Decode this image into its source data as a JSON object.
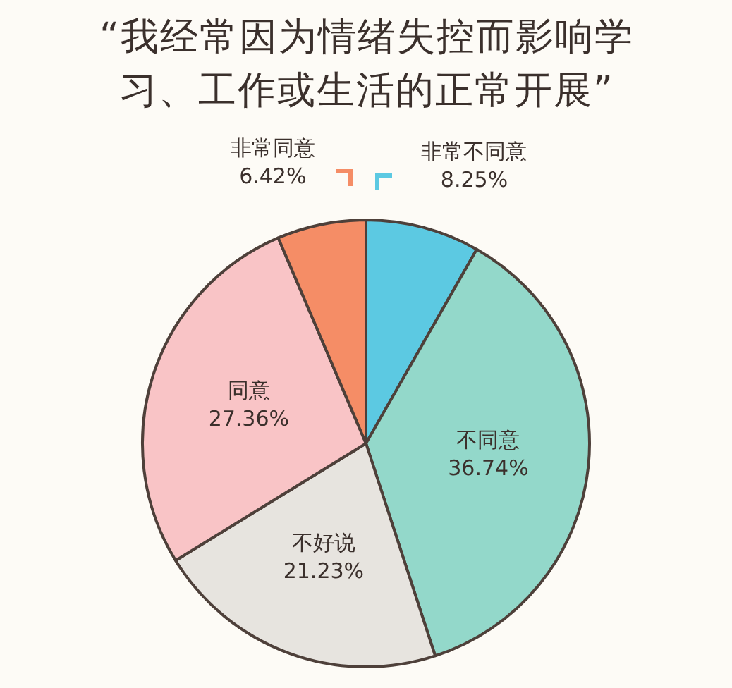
{
  "chart_data": {
    "type": "pie",
    "title": "“我经常因为情绪失控而影响学习、工作或生活的正常开展”",
    "categories": [
      "非常不同意",
      "不同意",
      "不好说",
      "同意",
      "非常同意"
    ],
    "values": [
      8.25,
      36.74,
      21.23,
      27.36,
      6.42
    ],
    "colors": [
      "#5cc9e2",
      "#93d8ca",
      "#e7e4df",
      "#f9c4c6",
      "#f58d66"
    ],
    "value_labels": [
      "8.25%",
      "36.74%",
      "21.23%",
      "27.36%",
      "6.42%"
    ],
    "legend": false
  }
}
